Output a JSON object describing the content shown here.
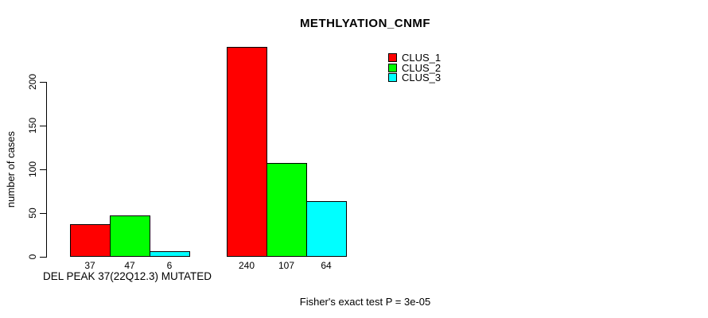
{
  "chart_data": {
    "type": "bar",
    "title": "METHLYATION_CNMF",
    "ylabel": "number of cases",
    "xlabel": "DEL PEAK 37(22Q12.3) MUTATED",
    "footnote": "Fisher's exact test P = 3e-05",
    "yticks": [
      0,
      50,
      100,
      150,
      200
    ],
    "ylim": [
      0,
      240
    ],
    "grid": false,
    "background_color": "#ffffff",
    "axis_color": "#000000",
    "legend": {
      "position": "top-right",
      "entries": [
        {
          "label": "CLUS_1",
          "color": "#FF0000"
        },
        {
          "label": "CLUS_2",
          "color": "#00FF00"
        },
        {
          "label": "CLUS_3",
          "color": "#00FFFF"
        }
      ]
    },
    "groups": [
      {
        "values": [
          37,
          47,
          6
        ]
      },
      {
        "values": [
          240,
          107,
          64
        ]
      }
    ],
    "series": [
      {
        "name": "CLUS_1",
        "color": "#FF0000",
        "values": [
          37,
          240
        ]
      },
      {
        "name": "CLUS_2",
        "color": "#00FF00",
        "values": [
          47,
          107
        ]
      },
      {
        "name": "CLUS_3",
        "color": "#00FFFF",
        "values": [
          6,
          64
        ]
      }
    ]
  }
}
